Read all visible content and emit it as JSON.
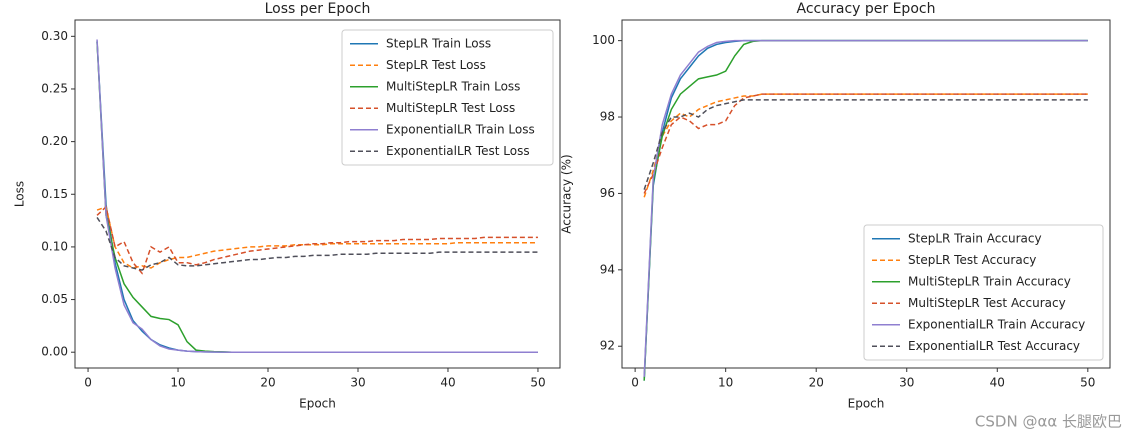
{
  "chart_data": [
    {
      "type": "line",
      "title": "Loss per Epoch",
      "xlabel": "Epoch",
      "ylabel": "Loss",
      "x": [
        1,
        2,
        3,
        4,
        5,
        6,
        7,
        8,
        9,
        10,
        11,
        12,
        13,
        14,
        15,
        16,
        17,
        18,
        19,
        20,
        21,
        22,
        23,
        24,
        25,
        26,
        27,
        28,
        29,
        30,
        31,
        32,
        33,
        34,
        35,
        36,
        37,
        38,
        39,
        40,
        41,
        42,
        43,
        44,
        45,
        46,
        47,
        48,
        49,
        50
      ],
      "xlim": [
        -1.45,
        52.45
      ],
      "xticks": [
        0,
        10,
        20,
        30,
        40,
        50
      ],
      "ylim": [
        -0.015,
        0.3155
      ],
      "yticks": [
        {
          "value": 0,
          "label": "0.00"
        },
        {
          "value": 0.05,
          "label": "0.05"
        },
        {
          "value": 0.1,
          "label": "0.10"
        },
        {
          "value": 0.15,
          "label": "0.15"
        },
        {
          "value": 0.2,
          "label": "0.20"
        },
        {
          "value": 0.25,
          "label": "0.25"
        },
        {
          "value": 0.3,
          "label": "0.30"
        }
      ],
      "legend": "upper right",
      "series": [
        {
          "name": "StepLR Train Loss",
          "color": "#1f77b4",
          "linestyle": "solid",
          "values": [
            0.295,
            0.14,
            0.085,
            0.05,
            0.03,
            0.02,
            0.012,
            0.007,
            0.004,
            0.002,
            0.001,
            0.0005,
            0.0003,
            0.0002,
            0.0001,
            0,
            0,
            0,
            0,
            0,
            0,
            0,
            0,
            0,
            0,
            0,
            0,
            0,
            0,
            0,
            0,
            0,
            0,
            0,
            0,
            0,
            0,
            0,
            0,
            0,
            0,
            0,
            0,
            0,
            0,
            0,
            0,
            0,
            0,
            0
          ]
        },
        {
          "name": "StepLR Test Loss",
          "color": "#ff7f0e",
          "linestyle": "dashed",
          "values": [
            0.135,
            0.138,
            0.1,
            0.085,
            0.08,
            0.082,
            0.08,
            0.085,
            0.088,
            0.09,
            0.09,
            0.092,
            0.094,
            0.096,
            0.097,
            0.098,
            0.099,
            0.1,
            0.1,
            0.101,
            0.101,
            0.101,
            0.102,
            0.102,
            0.102,
            0.102,
            0.103,
            0.103,
            0.103,
            0.103,
            0.103,
            0.103,
            0.103,
            0.103,
            0.103,
            0.103,
            0.103,
            0.103,
            0.103,
            0.103,
            0.104,
            0.104,
            0.104,
            0.104,
            0.104,
            0.104,
            0.104,
            0.104,
            0.104,
            0.104
          ]
        },
        {
          "name": "MultiStepLR Train Loss",
          "color": "#2ca02c",
          "linestyle": "solid",
          "values": [
            0.295,
            0.13,
            0.09,
            0.065,
            0.052,
            0.043,
            0.034,
            0.032,
            0.031,
            0.026,
            0.01,
            0.002,
            0.001,
            0.0005,
            0.0003,
            0,
            0,
            0,
            0,
            0,
            0,
            0,
            0,
            0,
            0,
            0,
            0,
            0,
            0,
            0,
            0,
            0,
            0,
            0,
            0,
            0,
            0,
            0,
            0,
            0,
            0,
            0,
            0,
            0,
            0,
            0,
            0,
            0,
            0,
            0
          ]
        },
        {
          "name": "MultiStepLR Test Loss",
          "color": "#d6502a",
          "linestyle": "dashed",
          "values": [
            0.13,
            0.138,
            0.1,
            0.105,
            0.085,
            0.075,
            0.1,
            0.095,
            0.1,
            0.085,
            0.085,
            0.083,
            0.085,
            0.088,
            0.09,
            0.092,
            0.094,
            0.096,
            0.097,
            0.098,
            0.099,
            0.1,
            0.101,
            0.102,
            0.103,
            0.103,
            0.104,
            0.104,
            0.105,
            0.105,
            0.105,
            0.106,
            0.106,
            0.106,
            0.107,
            0.107,
            0.107,
            0.107,
            0.108,
            0.108,
            0.108,
            0.108,
            0.108,
            0.109,
            0.109,
            0.109,
            0.109,
            0.109,
            0.109,
            0.109
          ]
        },
        {
          "name": "ExponentialLR Train Loss",
          "color": "#8f7fd0",
          "linestyle": "solid",
          "values": [
            0.297,
            0.13,
            0.08,
            0.045,
            0.028,
            0.022,
            0.012,
            0.006,
            0.003,
            0.002,
            0.001,
            0.0005,
            0.0003,
            0.0002,
            0.0001,
            0,
            0,
            0,
            0,
            0,
            0,
            0,
            0,
            0,
            0,
            0,
            0,
            0,
            0,
            0,
            0,
            0,
            0,
            0,
            0,
            0,
            0,
            0,
            0,
            0,
            0,
            0,
            0,
            0,
            0,
            0,
            0,
            0,
            0,
            0
          ]
        },
        {
          "name": "ExponentialLR Test Loss",
          "color": "#4f4f5a",
          "linestyle": "dashed",
          "values": [
            0.128,
            0.115,
            0.09,
            0.082,
            0.08,
            0.078,
            0.083,
            0.085,
            0.09,
            0.083,
            0.082,
            0.082,
            0.083,
            0.084,
            0.085,
            0.086,
            0.087,
            0.088,
            0.088,
            0.089,
            0.09,
            0.09,
            0.091,
            0.091,
            0.092,
            0.092,
            0.092,
            0.093,
            0.093,
            0.093,
            0.093,
            0.094,
            0.094,
            0.094,
            0.094,
            0.094,
            0.094,
            0.094,
            0.095,
            0.095,
            0.095,
            0.095,
            0.095,
            0.095,
            0.095,
            0.095,
            0.095,
            0.095,
            0.095,
            0.095
          ]
        }
      ]
    },
    {
      "type": "line",
      "title": "Accuracy per Epoch",
      "xlabel": "Epoch",
      "ylabel": "Accuracy (%)",
      "x": [
        1,
        2,
        3,
        4,
        5,
        6,
        7,
        8,
        9,
        10,
        11,
        12,
        13,
        14,
        15,
        16,
        17,
        18,
        19,
        20,
        21,
        22,
        23,
        24,
        25,
        26,
        27,
        28,
        29,
        30,
        31,
        32,
        33,
        34,
        35,
        36,
        37,
        38,
        39,
        40,
        41,
        42,
        43,
        44,
        45,
        46,
        47,
        48,
        49,
        50
      ],
      "xlim": [
        -1.45,
        52.45
      ],
      "xticks": [
        0,
        10,
        20,
        30,
        40,
        50
      ],
      "ylim": [
        91.43,
        100.54
      ],
      "yticks": [
        92,
        94,
        96,
        98,
        100
      ],
      "legend": "lower right",
      "series": [
        {
          "name": "StepLR Train Accuracy",
          "color": "#1f77b4",
          "linestyle": "solid",
          "values": [
            91.1,
            96.2,
            97.6,
            98.5,
            99.0,
            99.3,
            99.6,
            99.8,
            99.9,
            99.95,
            99.98,
            100,
            100,
            100,
            100,
            100,
            100,
            100,
            100,
            100,
            100,
            100,
            100,
            100,
            100,
            100,
            100,
            100,
            100,
            100,
            100,
            100,
            100,
            100,
            100,
            100,
            100,
            100,
            100,
            100,
            100,
            100,
            100,
            100,
            100,
            100,
            100,
            100,
            100,
            100
          ]
        },
        {
          "name": "StepLR Test Accuracy",
          "color": "#ff7f0e",
          "linestyle": "dashed",
          "values": [
            95.9,
            96.6,
            97.5,
            97.9,
            98.1,
            98.0,
            98.2,
            98.3,
            98.4,
            98.45,
            98.5,
            98.55,
            98.55,
            98.6,
            98.6,
            98.6,
            98.6,
            98.6,
            98.6,
            98.6,
            98.6,
            98.6,
            98.6,
            98.6,
            98.6,
            98.6,
            98.6,
            98.6,
            98.6,
            98.6,
            98.6,
            98.6,
            98.6,
            98.6,
            98.6,
            98.6,
            98.6,
            98.6,
            98.6,
            98.6,
            98.6,
            98.6,
            98.6,
            98.6,
            98.6,
            98.6,
            98.6,
            98.6,
            98.6,
            98.6
          ]
        },
        {
          "name": "MultiStepLR Train Accuracy",
          "color": "#2ca02c",
          "linestyle": "solid",
          "values": [
            91.1,
            96.3,
            97.5,
            98.2,
            98.6,
            98.8,
            99.0,
            99.05,
            99.1,
            99.2,
            99.6,
            99.9,
            99.98,
            100,
            100,
            100,
            100,
            100,
            100,
            100,
            100,
            100,
            100,
            100,
            100,
            100,
            100,
            100,
            100,
            100,
            100,
            100,
            100,
            100,
            100,
            100,
            100,
            100,
            100,
            100,
            100,
            100,
            100,
            100,
            100,
            100,
            100,
            100,
            100,
            100
          ]
        },
        {
          "name": "MultiStepLR Test Accuracy",
          "color": "#d6502a",
          "linestyle": "dashed",
          "values": [
            96.0,
            96.5,
            97.2,
            97.8,
            98.0,
            97.9,
            97.7,
            97.8,
            97.8,
            97.9,
            98.3,
            98.5,
            98.55,
            98.6,
            98.6,
            98.6,
            98.6,
            98.6,
            98.6,
            98.6,
            98.6,
            98.6,
            98.6,
            98.6,
            98.6,
            98.6,
            98.6,
            98.6,
            98.6,
            98.6,
            98.6,
            98.6,
            98.6,
            98.6,
            98.6,
            98.6,
            98.6,
            98.6,
            98.6,
            98.6,
            98.6,
            98.6,
            98.6,
            98.6,
            98.6,
            98.6,
            98.6,
            98.6,
            98.6,
            98.6
          ]
        },
        {
          "name": "ExponentialLR Train Accuracy",
          "color": "#8f7fd0",
          "linestyle": "solid",
          "values": [
            91.2,
            96.4,
            97.8,
            98.6,
            99.1,
            99.4,
            99.7,
            99.85,
            99.95,
            99.98,
            100,
            100,
            100,
            100,
            100,
            100,
            100,
            100,
            100,
            100,
            100,
            100,
            100,
            100,
            100,
            100,
            100,
            100,
            100,
            100,
            100,
            100,
            100,
            100,
            100,
            100,
            100,
            100,
            100,
            100,
            100,
            100,
            100,
            100,
            100,
            100,
            100,
            100,
            100,
            100
          ]
        },
        {
          "name": "ExponentialLR Test Accuracy",
          "color": "#4f4f5a",
          "linestyle": "dashed",
          "values": [
            96.1,
            96.8,
            97.6,
            98.0,
            98.0,
            98.1,
            98.0,
            98.2,
            98.3,
            98.35,
            98.4,
            98.45,
            98.45,
            98.45,
            98.45,
            98.45,
            98.45,
            98.45,
            98.45,
            98.45,
            98.45,
            98.45,
            98.45,
            98.45,
            98.45,
            98.45,
            98.45,
            98.45,
            98.45,
            98.45,
            98.45,
            98.45,
            98.45,
            98.45,
            98.45,
            98.45,
            98.45,
            98.45,
            98.45,
            98.45,
            98.45,
            98.45,
            98.45,
            98.45,
            98.45,
            98.45,
            98.45,
            98.45,
            98.45,
            98.45
          ]
        }
      ]
    }
  ],
  "watermark": "CSDN @αα 长腿欧巴"
}
